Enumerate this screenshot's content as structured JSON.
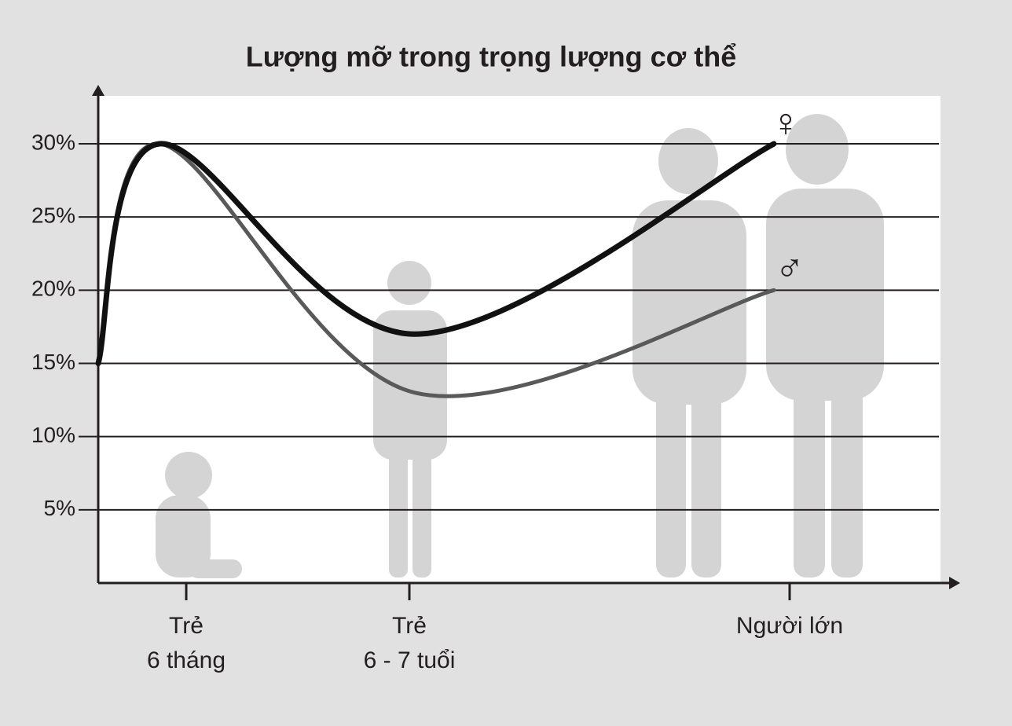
{
  "chart_data": {
    "type": "line",
    "title": "Lượng mỡ trong trọng lượng cơ thể",
    "categories": [
      null,
      "Trẻ\n6 tháng",
      "Trẻ\n6 - 7 tuổi",
      "Người lớn"
    ],
    "series": [
      {
        "name": "♀",
        "color": "#111111",
        "values": [
          15,
          30,
          17,
          30
        ]
      },
      {
        "name": "♂",
        "color": "#595959",
        "values": [
          15,
          30,
          13,
          20
        ]
      }
    ],
    "ylim": [
      0,
      30
    ],
    "yticks": [
      {
        "value": 5,
        "label": "5%"
      },
      {
        "value": 10,
        "label": "10%"
      },
      {
        "value": 15,
        "label": "15%"
      },
      {
        "value": 20,
        "label": "20%"
      },
      {
        "value": 25,
        "label": "25%"
      },
      {
        "value": 30,
        "label": "30%"
      }
    ],
    "grid": true
  }
}
